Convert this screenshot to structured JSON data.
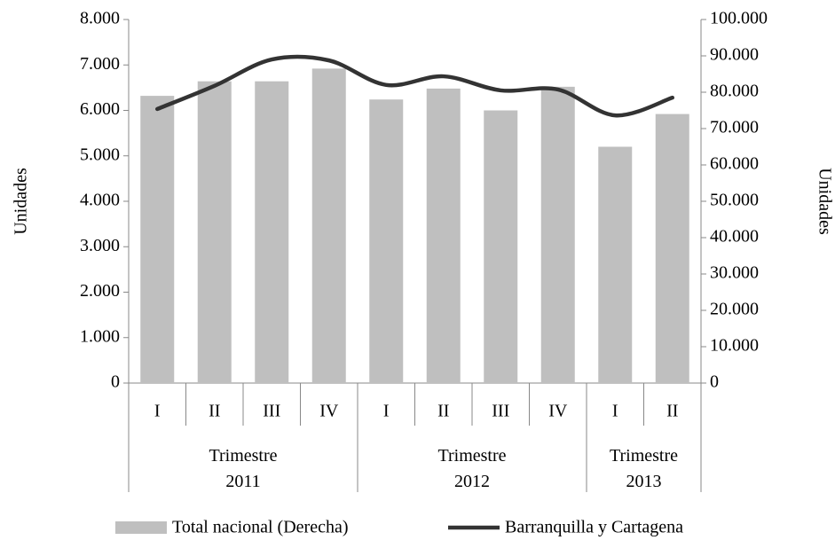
{
  "chart_data": {
    "type": "bar-line",
    "y_label": "Unidades",
    "y2_label": "Unidades",
    "groups": [
      {
        "name": "Trimestre 2011",
        "categories": [
          "I",
          "II",
          "III",
          "IV"
        ]
      },
      {
        "name": "Trimestre 2012",
        "categories": [
          "I",
          "II",
          "III",
          "IV"
        ]
      },
      {
        "name": "Trimestre 2013",
        "categories": [
          "I",
          "II"
        ]
      }
    ],
    "series": [
      {
        "name": "Total nacional (Derecha)",
        "type": "bar",
        "axis": "y2",
        "color": "#bfbfbf",
        "values": [
          79000,
          83000,
          83000,
          86500,
          78000,
          81000,
          75000,
          81500,
          65000,
          74000
        ]
      },
      {
        "name": "Barranquilla y Cartagena",
        "type": "line",
        "axis": "y",
        "color": "#333333",
        "values": [
          6030,
          6540,
          7120,
          7100,
          6560,
          6750,
          6440,
          6460,
          5890,
          6280
        ]
      }
    ],
    "ylim": [
      0,
      8000
    ],
    "yticks": [
      0,
      {
        "value": 1000,
        "label": "1.000"
      },
      {
        "value": 2000,
        "label": "2.000"
      },
      {
        "value": 3000,
        "label": "3.000"
      },
      {
        "value": 4000,
        "label": "4.000"
      },
      {
        "value": 5000,
        "label": "5.000"
      },
      {
        "value": 6000,
        "label": "6.000"
      },
      {
        "value": 7000,
        "label": "7.000"
      },
      {
        "value": 8000,
        "label": "8.000"
      }
    ],
    "y2lim": [
      0,
      100000
    ],
    "y2ticks": [
      0,
      {
        "value": 10000,
        "label": "10.000"
      },
      {
        "value": 20000,
        "label": "20.000"
      },
      {
        "value": 30000,
        "label": "30.000"
      },
      {
        "value": 40000,
        "label": "40.000"
      },
      {
        "value": 50000,
        "label": "50.000"
      },
      {
        "value": 60000,
        "label": "60.000"
      },
      {
        "value": 70000,
        "label": "70.000"
      },
      {
        "value": 80000,
        "label": "80.000"
      },
      {
        "value": 90000,
        "label": "90.000"
      },
      {
        "value": 100000,
        "label": "100.000"
      }
    ],
    "legend": "bottom"
  }
}
